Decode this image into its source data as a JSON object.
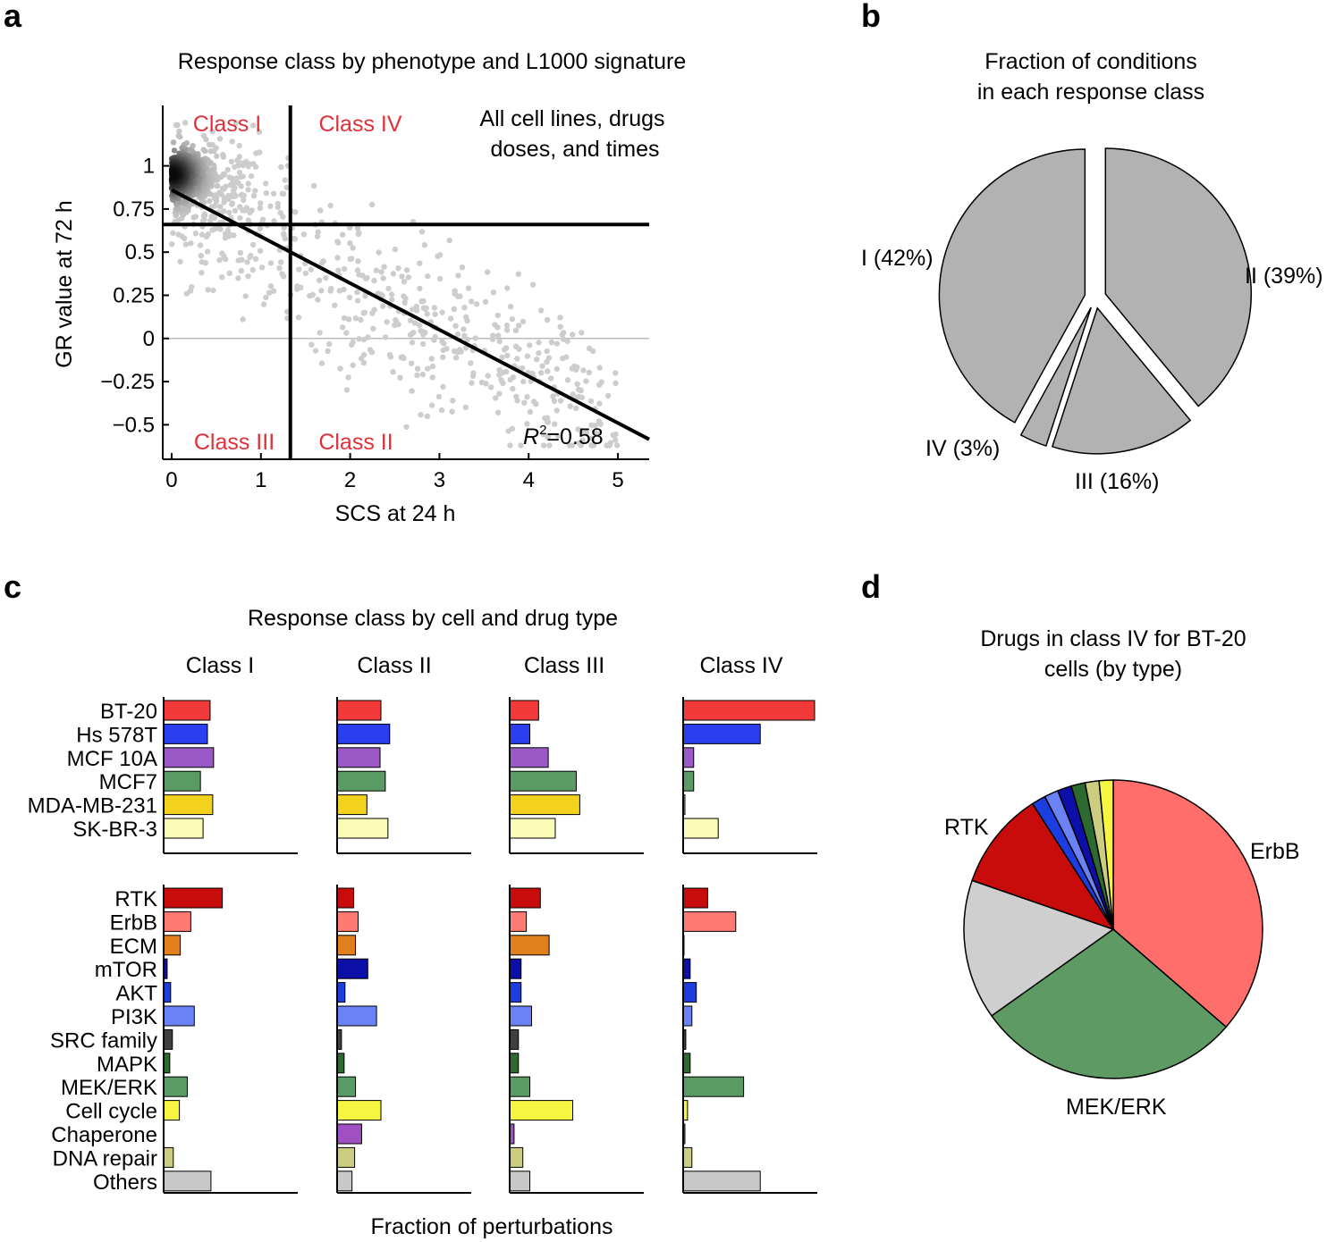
{
  "panel_labels": {
    "a": "a",
    "b": "b",
    "c": "c",
    "d": "d"
  },
  "colors": {
    "accent_red": "#e0303a",
    "pie_gray": "#b2b2b2"
  },
  "chart_data": [
    {
      "id": "a",
      "type": "scatter",
      "title": "Response class by phenotype and L1000 signature",
      "xlabel": "SCS at 24 h",
      "ylabel": "GR value at 72 h",
      "xlim": [
        -0.1,
        5.35
      ],
      "ylim": [
        -0.7,
        1.35
      ],
      "xticks": [
        "0",
        "1",
        "2",
        "3",
        "4",
        "5"
      ],
      "xtick_values": [
        0,
        1,
        2,
        3,
        4,
        5
      ],
      "yticks": [
        "1",
        "0.75",
        "0.5",
        "0.25",
        "0",
        "−0.25",
        "−0.5"
      ],
      "ytick_values": [
        1,
        0.75,
        0.5,
        0.25,
        0,
        -0.25,
        -0.5
      ],
      "thresholds": {
        "x": 1.33,
        "y": 0.66
      },
      "fit": {
        "intercept": 0.86,
        "slope": -0.27,
        "x_range": [
          0,
          5.35
        ]
      },
      "quadrant_labels": [
        "Class I",
        "Class IV",
        "Class III",
        "Class II"
      ],
      "annotation_lines": [
        "All cell lines, drugs",
        "doses, and times"
      ],
      "r2_label": "R",
      "r2_sup": "2",
      "r2_value": "=0.58"
    },
    {
      "id": "b",
      "type": "pie",
      "title_lines": [
        "Fraction of conditions",
        "in each response class"
      ],
      "slices": [
        {
          "label": "II (39%)",
          "value": 39
        },
        {
          "label": "III (16%)",
          "value": 16
        },
        {
          "label": "IV (3%)",
          "value": 3
        },
        {
          "label": "I (42%)",
          "value": 42
        }
      ]
    },
    {
      "id": "c",
      "type": "bar",
      "title": "Response class by cell and drug type",
      "xlabel": "Fraction of perturbations",
      "classes": [
        "Class I",
        "Class II",
        "Class III",
        "Class IV"
      ],
      "cell_lines": [
        "BT-20",
        "Hs 578T",
        "MCF 10A",
        "MCF7",
        "MDA-MB-231",
        "SK-BR-3"
      ],
      "cell_colors": [
        "#f23a3a",
        "#2a40f0",
        "#9b59c8",
        "#5a9a64",
        "#f2d21c",
        "#fbfbb8"
      ],
      "cell_values": [
        [
          0.53,
          0.5,
          0.57,
          0.42,
          0.56,
          0.45
        ],
        [
          0.5,
          0.6,
          0.49,
          0.55,
          0.34,
          0.58
        ],
        [
          0.33,
          0.23,
          0.44,
          0.76,
          0.8,
          0.52
        ],
        [
          1.5,
          0.88,
          0.12,
          0.12,
          0.02,
          0.4
        ]
      ],
      "drug_types": [
        "RTK",
        "ErbB",
        "ECM",
        "mTOR",
        "AKT",
        "PI3K",
        "SRC family",
        "MAPK",
        "MEK/ERK",
        "Cell cycle",
        "Chaperone",
        "DNA repair",
        "Others"
      ],
      "drug_colors": [
        "#c80c0c",
        "#ff7a72",
        "#e0801c",
        "#0c10a8",
        "#1c3ee0",
        "#6a82f5",
        "#404040",
        "#2c6a30",
        "#5a9a64",
        "#f5f542",
        "#a050c0",
        "#cdcd82",
        "#c8c8c8"
      ],
      "drug_values": [
        [
          0.67,
          0.31,
          0.19,
          0.04,
          0.08,
          0.35,
          0.1,
          0.07,
          0.27,
          0.18,
          0.0,
          0.11,
          0.54
        ],
        [
          0.19,
          0.24,
          0.21,
          0.35,
          0.09,
          0.45,
          0.05,
          0.08,
          0.21,
          0.5,
          0.28,
          0.2,
          0.17
        ],
        [
          0.35,
          0.19,
          0.45,
          0.13,
          0.13,
          0.25,
          0.1,
          0.1,
          0.23,
          0.72,
          0.05,
          0.15,
          0.23
        ],
        [
          0.28,
          0.6,
          0.01,
          0.08,
          0.15,
          0.1,
          0.03,
          0.08,
          0.69,
          0.05,
          0.02,
          0.1,
          0.88
        ]
      ]
    },
    {
      "id": "d",
      "type": "pie",
      "title_lines": [
        "Drugs in class IV for BT-20",
        "cells (by type)"
      ],
      "slices": [
        {
          "label": "ErbB",
          "value": 36,
          "color": "#ff6e6a"
        },
        {
          "label": "MEK/ERK",
          "value": 28.5,
          "color": "#5e9a64"
        },
        {
          "label": "",
          "value": 15,
          "color": "#cfcfcf"
        },
        {
          "label": "RTK",
          "value": 10.5,
          "color": "#c80c0c"
        },
        {
          "label": "",
          "value": 1.5,
          "color": "#1c3ee0"
        },
        {
          "label": "",
          "value": 1.5,
          "color": "#6a82f5"
        },
        {
          "label": "",
          "value": 1.5,
          "color": "#0c10a8"
        },
        {
          "label": "",
          "value": 1.5,
          "color": "#2c6a30"
        },
        {
          "label": "",
          "value": 1.5,
          "color": "#cdcd82"
        },
        {
          "label": "",
          "value": 1.5,
          "color": "#f5f542"
        }
      ]
    }
  ]
}
